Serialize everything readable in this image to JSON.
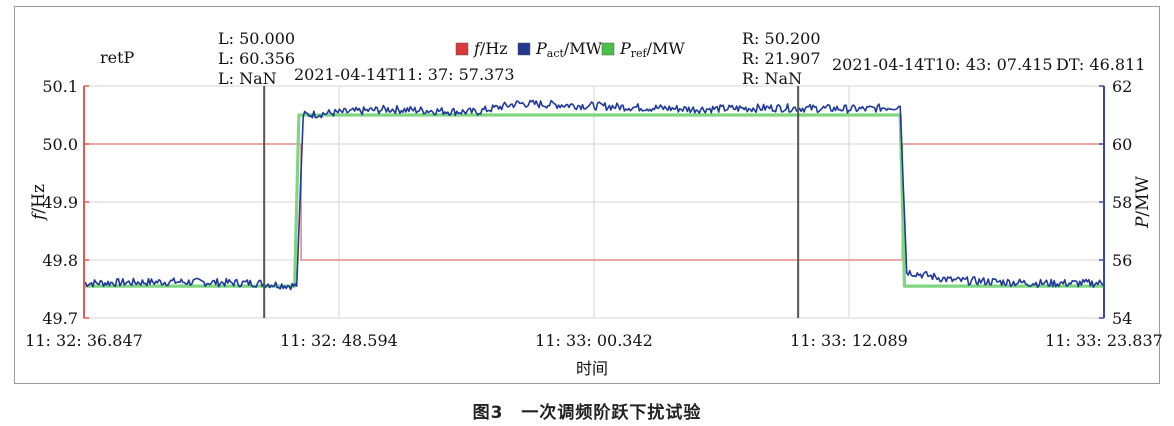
{
  "chart_data": {
    "type": "line",
    "name": "retP",
    "x_ticks": [
      "11: 32: 36.847",
      "11: 32: 48.594",
      "11: 33: 00.342",
      "11: 33: 12.089",
      "11: 33: 23.837"
    ],
    "xlabel": "时间",
    "x_range_seconds": [
      0,
      46.99
    ],
    "left_axis": {
      "label_italic": "f",
      "label": "/Hz",
      "ticks": [
        "49.7",
        "49.8",
        "49.9",
        "50.0",
        "50.1"
      ],
      "range": [
        49.7,
        50.1
      ],
      "color": "#e05a5a"
    },
    "right_axis": {
      "label_italic": "P",
      "label": "/MW",
      "ticks": [
        "54",
        "56",
        "58",
        "60",
        "62"
      ],
      "range": [
        54,
        62
      ],
      "color": "#3a48a8"
    },
    "legend": [
      {
        "key": "f",
        "italic": "f",
        "sub": "",
        "suffix": "/Hz",
        "color": "#d93a3a"
      },
      {
        "key": "pact",
        "italic": "P",
        "sub": "act",
        "suffix": "/MW",
        "color": "#24388f"
      },
      {
        "key": "pref",
        "italic": "P",
        "sub": "ref",
        "suffix": "/MW",
        "color": "#4cc04c"
      }
    ],
    "series": [
      {
        "name": "f/Hz",
        "axis": "left",
        "color": "#e58a8a",
        "step": true,
        "x": [
          0,
          10.0,
          10.0,
          37.7,
          37.7,
          46.99
        ],
        "y": [
          50.0,
          50.0,
          49.8,
          49.8,
          50.0,
          50.0
        ]
      },
      {
        "name": "Pref/MW",
        "axis": "right",
        "color": "#7fd67f",
        "step": true,
        "x": [
          0,
          9.7,
          9.9,
          37.6,
          37.8,
          46.99
        ],
        "y": [
          55.1,
          55.1,
          61.0,
          61.0,
          55.1,
          55.1
        ]
      },
      {
        "name": "Pact/MW",
        "axis": "right",
        "color": "#1f3a99",
        "x": [
          0,
          4,
          8,
          9.8,
          10.1,
          14,
          18,
          20,
          24,
          28,
          32,
          36,
          37.6,
          37.9,
          40,
          44,
          46.99
        ],
        "y": [
          55.2,
          55.25,
          55.2,
          55.1,
          61.0,
          61.2,
          61.1,
          61.4,
          61.3,
          61.2,
          61.25,
          61.2,
          61.3,
          55.6,
          55.3,
          55.2,
          55.2
        ]
      }
    ],
    "cursors": [
      {
        "side": "left",
        "x": 8.3,
        "color": "#555555"
      },
      {
        "side": "right",
        "x": 32.9,
        "color": "#555555"
      }
    ],
    "cursor_left_labels": [
      "L: 50.000",
      "L: 60.356",
      "L: NaN"
    ],
    "cursor_left_time": "2021-04-14T11: 37: 57.373",
    "cursor_right_labels": [
      "R: 50.200",
      "R: 21.907",
      "R: NaN"
    ],
    "cursor_right_time": "2021-04-14T10: 43: 07.415",
    "delta_label": "DT: 46.811",
    "grid": true
  },
  "caption": "图3　一次调频阶跃下扰试验"
}
